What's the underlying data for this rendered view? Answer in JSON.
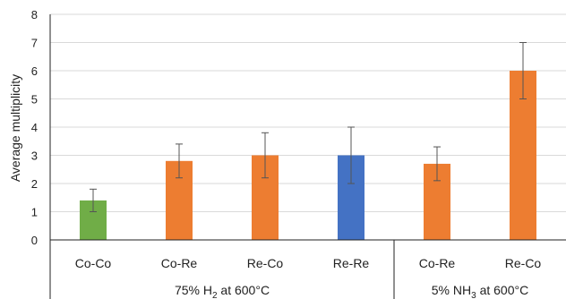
{
  "chart_data": {
    "type": "bar",
    "ylabel": "Average multiplicity",
    "ylim": [
      0,
      8
    ],
    "yticks": [
      0,
      1,
      2,
      3,
      4,
      5,
      6,
      7,
      8
    ],
    "grid": true,
    "categories": [
      "Co-Co",
      "Co-Re",
      "Re-Co",
      "Re-Re",
      "Co-Re",
      "Re-Co"
    ],
    "values": [
      1.4,
      2.8,
      3.0,
      3.0,
      2.7,
      6.0
    ],
    "error_low": [
      1.0,
      2.2,
      2.2,
      2.0,
      2.1,
      5.0
    ],
    "error_high": [
      1.8,
      3.4,
      3.8,
      4.0,
      3.3,
      7.0
    ],
    "bar_colors": [
      "#70ad47",
      "#ed7d31",
      "#ed7d31",
      "#4472c4",
      "#ed7d31",
      "#ed7d31"
    ],
    "groups": [
      {
        "label_pre": "75% H",
        "label_sub": "2",
        "label_post": " at 600°C",
        "categories": [
          0,
          1,
          2,
          3
        ]
      },
      {
        "label_pre": "5% NH",
        "label_sub": "3",
        "label_post": " at 600°C",
        "categories": [
          4,
          5
        ]
      }
    ]
  }
}
